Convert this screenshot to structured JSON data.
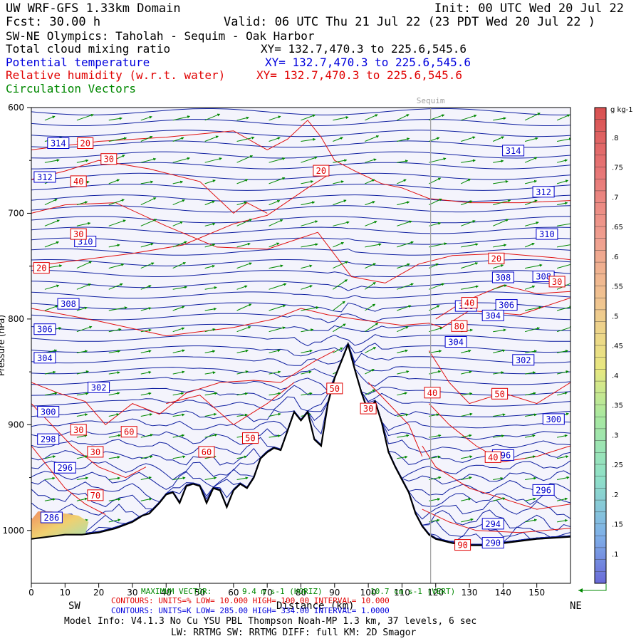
{
  "header": {
    "model": "UW WRF-GFS 1.33km Domain",
    "init": "Init: 00 UTC Wed 20 Jul 22",
    "fcst": "Fcst:    30.00 h",
    "valid": "Valid: 06 UTC Thu 21 Jul 22   (23 PDT Wed 20 Jul 22  )",
    "cross_section": "SW-NE Olympics: Taholah - Sequim - Oak Harbor",
    "fields": [
      {
        "name": "Total cloud mixing ratio",
        "xy": "XY= 132.7,470.3 to 225.6,545.6",
        "color": "#000000"
      },
      {
        "name": "Potential temperature",
        "xy": "XY= 132.7,470.3 to 225.6,545.6",
        "color": "#0000dd"
      },
      {
        "name": "Relative humidity (w.r.t. water)",
        "xy": "XY= 132.7,470.3 to 225.6,545.6",
        "color": "#e00000"
      },
      {
        "name": "Circulation Vectors",
        "xy": "",
        "color": "#008800"
      }
    ]
  },
  "chart_data": {
    "type": "cross-section",
    "xlabel": "Distance (km)",
    "ylabel": "Pressure (hPa)",
    "xlim": [
      0,
      160
    ],
    "ylim": [
      1050,
      600
    ],
    "x_ticks": [
      0,
      10,
      20,
      30,
      40,
      50,
      60,
      70,
      80,
      90,
      100,
      110,
      120,
      130,
      140,
      150
    ],
    "y_ticks": [
      600,
      700,
      800,
      900,
      1000
    ],
    "y_tick_labels": [
      "600",
      "700",
      "800",
      "900",
      "1000"
    ],
    "marker": {
      "label": "Sequim",
      "x": 118.5
    },
    "left_end": "SW",
    "right_end": "NE",
    "terrain": [
      [
        0,
        1008
      ],
      [
        5,
        1006
      ],
      [
        10,
        1004
      ],
      [
        15,
        1004
      ],
      [
        20,
        1002
      ],
      [
        25,
        998
      ],
      [
        30,
        992
      ],
      [
        33,
        986
      ],
      [
        35,
        984
      ],
      [
        38,
        974
      ],
      [
        40,
        966
      ],
      [
        42,
        964
      ],
      [
        44,
        974
      ],
      [
        46,
        958
      ],
      [
        48,
        956
      ],
      [
        50,
        958
      ],
      [
        52,
        974
      ],
      [
        54,
        960
      ],
      [
        56,
        962
      ],
      [
        58,
        978
      ],
      [
        60,
        962
      ],
      [
        62,
        956
      ],
      [
        64,
        960
      ],
      [
        66,
        950
      ],
      [
        68,
        932
      ],
      [
        70,
        926
      ],
      [
        72,
        922
      ],
      [
        74,
        924
      ],
      [
        76,
        906
      ],
      [
        78,
        888
      ],
      [
        80,
        896
      ],
      [
        82,
        888
      ],
      [
        84,
        914
      ],
      [
        86,
        920
      ],
      [
        88,
        880
      ],
      [
        90,
        856
      ],
      [
        92,
        840
      ],
      [
        94,
        824
      ],
      [
        96,
        848
      ],
      [
        98,
        870
      ],
      [
        100,
        888
      ],
      [
        102,
        878
      ],
      [
        104,
        898
      ],
      [
        106,
        926
      ],
      [
        108,
        940
      ],
      [
        110,
        952
      ],
      [
        112,
        964
      ],
      [
        114,
        984
      ],
      [
        116,
        996
      ],
      [
        118,
        1004
      ],
      [
        120,
        1008
      ],
      [
        125,
        1012
      ],
      [
        130,
        1014
      ],
      [
        135,
        1014
      ],
      [
        140,
        1012
      ],
      [
        145,
        1010
      ],
      [
        150,
        1008
      ],
      [
        155,
        1007
      ],
      [
        160,
        1006
      ]
    ],
    "theta_contours": {
      "units": "K",
      "low": "285.00",
      "high": "334.00",
      "interval": "1.0000",
      "labels": [
        {
          "value": "314",
          "x": 8,
          "p": 634
        },
        {
          "value": "314",
          "x": 143,
          "p": 641
        },
        {
          "value": "312",
          "x": 4,
          "p": 666
        },
        {
          "value": "312",
          "x": 152,
          "p": 680
        },
        {
          "value": "310",
          "x": 16,
          "p": 727
        },
        {
          "value": "310",
          "x": 153,
          "p": 720
        },
        {
          "value": "308",
          "x": 11,
          "p": 786
        },
        {
          "value": "308",
          "x": 140,
          "p": 761
        },
        {
          "value": "308",
          "x": 152,
          "p": 760
        },
        {
          "value": "306",
          "x": 129,
          "p": 788
        },
        {
          "value": "306",
          "x": 141,
          "p": 787
        },
        {
          "value": "306",
          "x": 4,
          "p": 810
        },
        {
          "value": "304",
          "x": 137,
          "p": 797
        },
        {
          "value": "304",
          "x": 4,
          "p": 837
        },
        {
          "value": "302",
          "x": 20,
          "p": 865
        },
        {
          "value": "302",
          "x": 146,
          "p": 839
        },
        {
          "value": "300",
          "x": 5,
          "p": 888
        },
        {
          "value": "300",
          "x": 155,
          "p": 895
        },
        {
          "value": "298",
          "x": 5,
          "p": 914
        },
        {
          "value": "296",
          "x": 10,
          "p": 941
        },
        {
          "value": "296",
          "x": 140,
          "p": 929
        },
        {
          "value": "296",
          "x": 152,
          "p": 962
        },
        {
          "value": "294",
          "x": 137,
          "p": 994
        },
        {
          "value": "290",
          "x": 137,
          "p": 1012
        },
        {
          "value": "286",
          "x": 6,
          "p": 988
        },
        {
          "value": "304",
          "x": 126,
          "p": 822
        }
      ]
    },
    "rh_contours": {
      "units": "%",
      "low": "10.000",
      "high": "100.00",
      "interval": "10.000",
      "labels": [
        {
          "value": "20",
          "x": 16,
          "p": 634
        },
        {
          "value": "30",
          "x": 23,
          "p": 649
        },
        {
          "value": "40",
          "x": 14,
          "p": 670
        },
        {
          "value": "20",
          "x": 86,
          "p": 660
        },
        {
          "value": "30",
          "x": 14,
          "p": 720
        },
        {
          "value": "20",
          "x": 3,
          "p": 752
        },
        {
          "value": "20",
          "x": 138,
          "p": 743
        },
        {
          "value": "30",
          "x": 156,
          "p": 765
        },
        {
          "value": "40",
          "x": 130,
          "p": 785
        },
        {
          "value": "80",
          "x": 127,
          "p": 807
        },
        {
          "value": "50",
          "x": 90,
          "p": 866
        },
        {
          "value": "40",
          "x": 119,
          "p": 870
        },
        {
          "value": "50",
          "x": 139,
          "p": 871
        },
        {
          "value": "30",
          "x": 100,
          "p": 885
        },
        {
          "value": "60",
          "x": 29,
          "p": 907
        },
        {
          "value": "30",
          "x": 14,
          "p": 905
        },
        {
          "value": "50",
          "x": 65,
          "p": 913
        },
        {
          "value": "30",
          "x": 19,
          "p": 926
        },
        {
          "value": "60",
          "x": 52,
          "p": 926
        },
        {
          "value": "40",
          "x": 137,
          "p": 931
        },
        {
          "value": "70",
          "x": 19,
          "p": 967
        },
        {
          "value": "90",
          "x": 128,
          "p": 1014
        }
      ]
    },
    "colorbar": {
      "units": "g kg-1",
      "ticks": [
        ".1",
        ".15",
        ".2",
        ".25",
        ".3",
        ".35",
        ".4",
        ".45",
        ".5",
        ".55",
        ".6",
        ".65",
        ".7",
        ".75",
        ".8"
      ],
      "range": [
        0.05,
        0.85
      ]
    },
    "max_vector": {
      "horiz": "9.4 m s-1 (HORIZ)",
      "vert": "10.7 cm s-1 (VERT)",
      "prefix": "MAXIMUM VECTOR:"
    }
  },
  "footer": {
    "axis_label": "Distance (km)",
    "rh_line": "CONTOURS:  UNITS=%  LOW=   10.000          HIGH=   100.00         INTERVAL=    10.000",
    "theta_line": "CONTOURS:  UNITS=K  LOW=   285.00          HIGH=   334.00         INTERVAL=    1.0000",
    "model_info": "Model Info: V4.1.3    No Cu    YSU PBL  Thompson     Noah-MP    1.3 km,  37 levels,    6 sec",
    "schemes": "LW: RRTMG SW: RRTMG    DIFF: full    KM: 2D Smagor"
  }
}
